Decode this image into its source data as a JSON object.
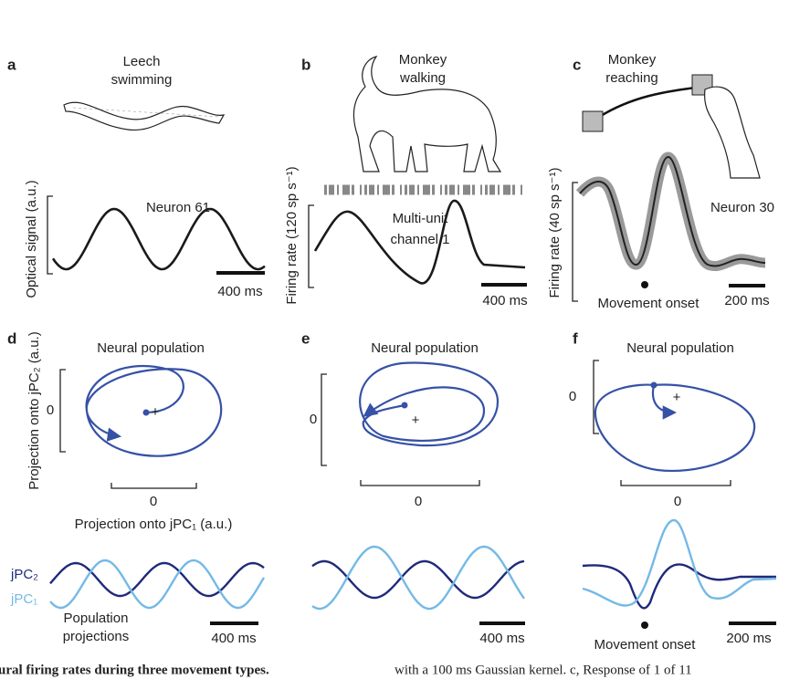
{
  "panels": [
    {
      "label": "a",
      "title": [
        "Leech",
        "swimming"
      ],
      "y_axis_label": "Optical signal (a.u.)",
      "trace_label": [
        "Neuron 61"
      ],
      "scale_bar": "400 ms"
    },
    {
      "label": "b",
      "title": [
        "Monkey",
        "walking"
      ],
      "y_axis_label": "Firing rate (120 sp s⁻¹)",
      "trace_label": [
        "Multi-unit",
        "channel 1"
      ],
      "scale_bar": "400 ms"
    },
    {
      "label": "c",
      "title": [
        "Monkey",
        "reaching"
      ],
      "y_axis_label": "Firing rate (40 sp s⁻¹)",
      "trace_label": [
        "Neuron 30"
      ],
      "event_label": "Movement onset",
      "scale_bar": "200 ms"
    }
  ],
  "population": [
    {
      "label": "d",
      "title": "Neural population",
      "y_tick": "0",
      "x_tick": "0",
      "y_axis_label": "Projection onto jPC₂ (a.u.)",
      "x_axis_label": "Projection onto jPC₁ (a.u.)",
      "scale_bar": "400 ms"
    },
    {
      "label": "e",
      "title": "Neural population",
      "y_tick": "0",
      "x_tick": "0",
      "scale_bar": "400 ms"
    },
    {
      "label": "f",
      "title": "Neural population",
      "y_tick": "0",
      "x_tick": "0",
      "event_label": "Movement onset",
      "scale_bar": "200 ms"
    }
  ],
  "legend": {
    "jpc2": "jPC₂",
    "jpc1": "jPC₁",
    "note": [
      "Population",
      "projections"
    ]
  },
  "caption": {
    "left": "ural firing rates during three movement types.",
    "right": "with a 100 ms Gaussian kernel. c, Response of 1 of 11"
  }
}
